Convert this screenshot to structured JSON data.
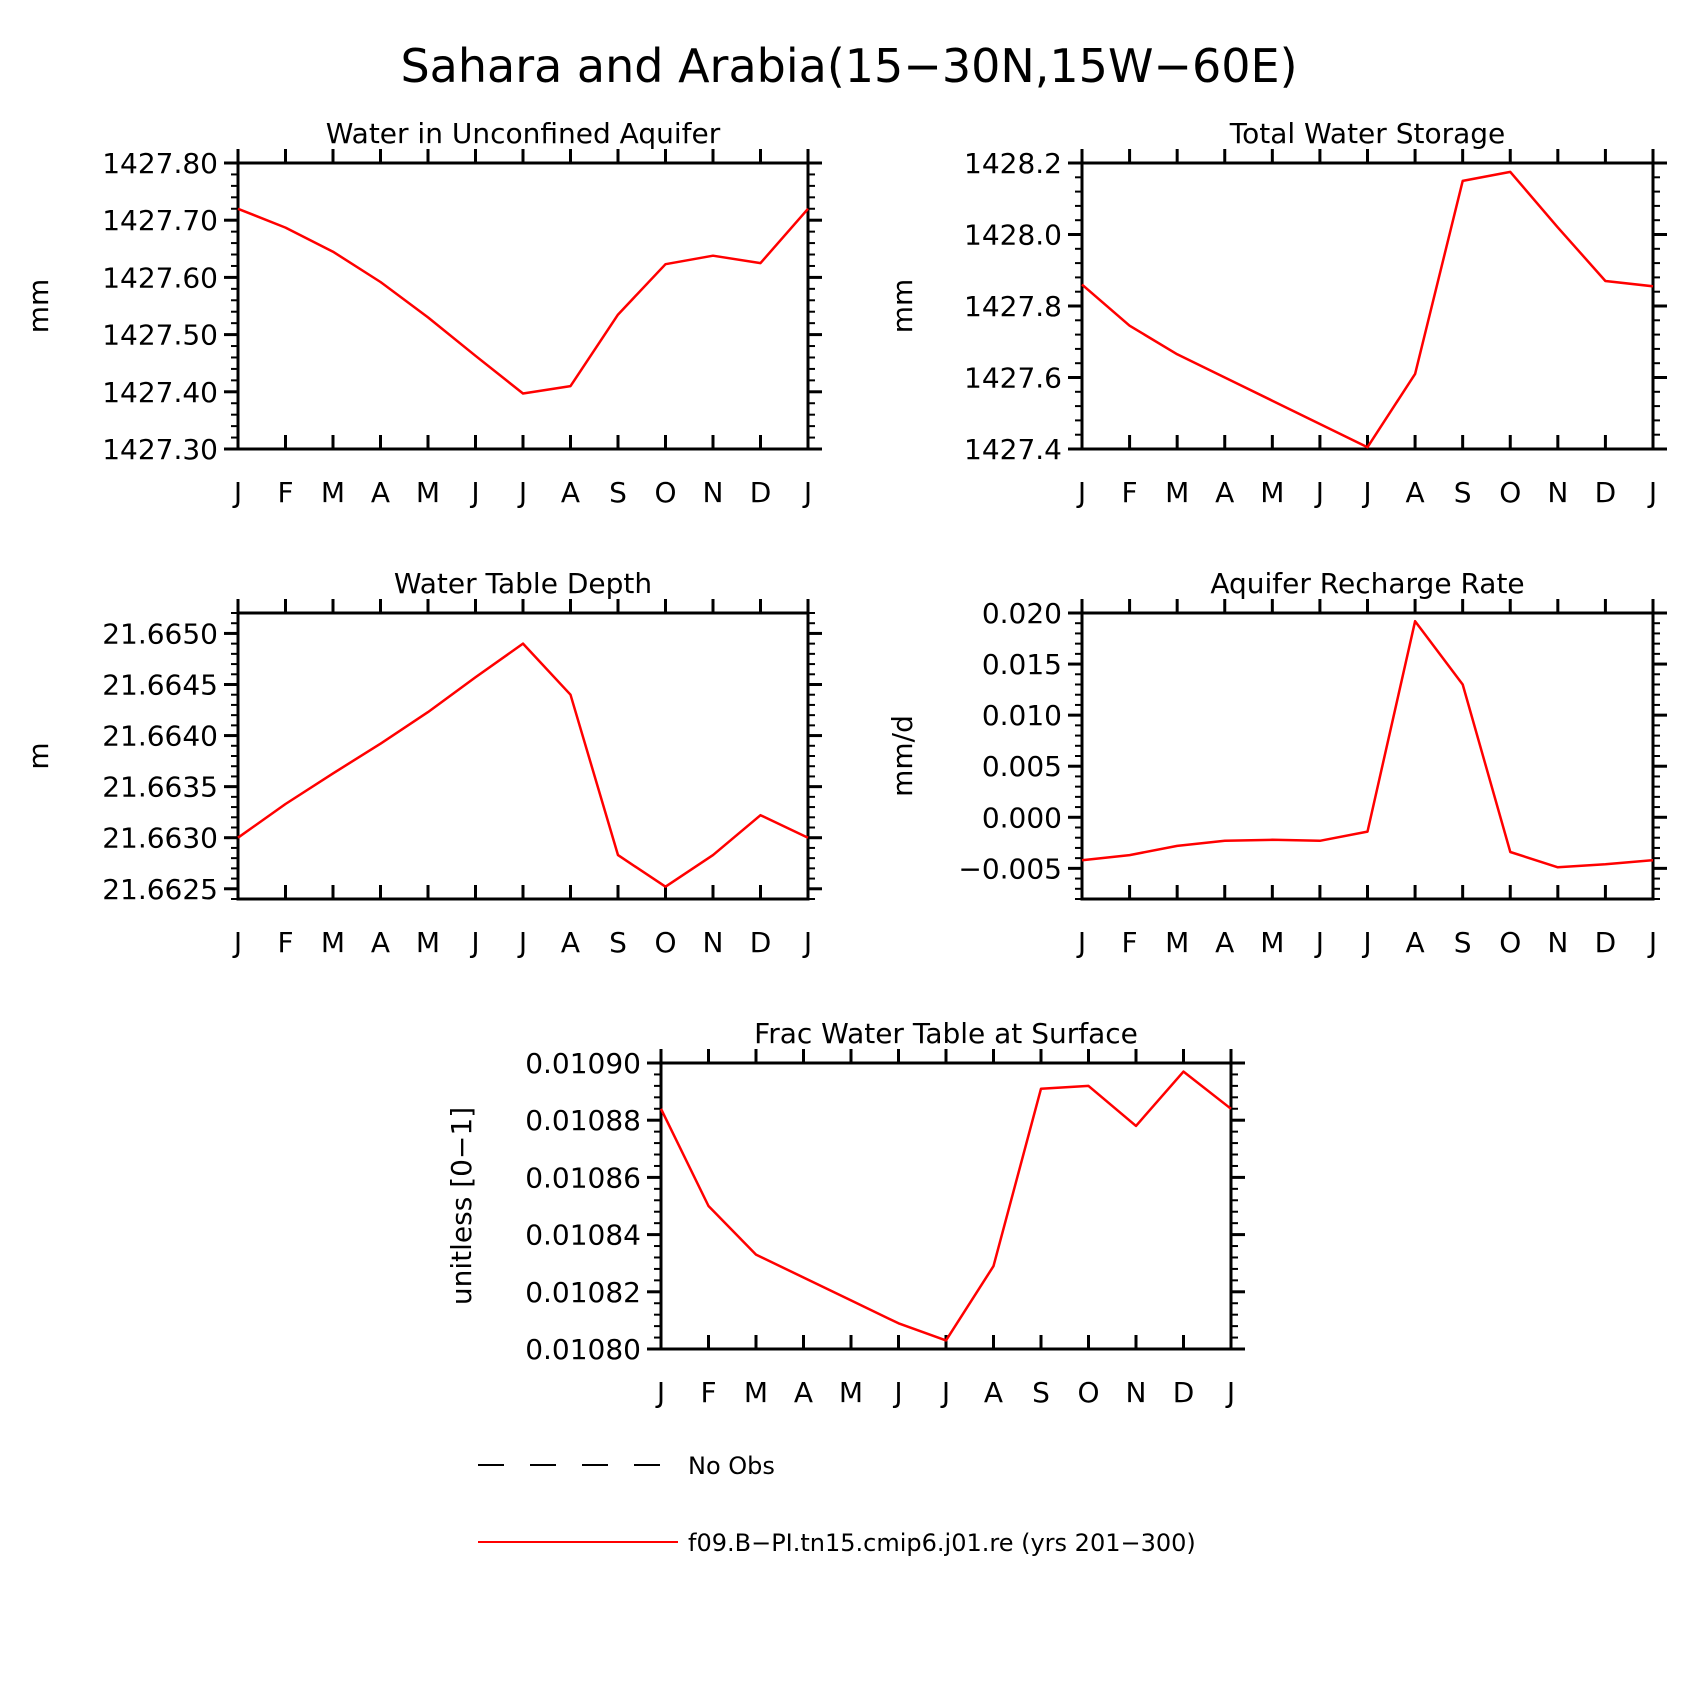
{
  "figure_title": "Sahara and Arabia(15−30N,15W−60E)",
  "colors": {
    "series": "#ff0000",
    "axis": "#000000"
  },
  "legend": {
    "entries": [
      {
        "label": "No Obs",
        "style": "dashed",
        "color": "#000000"
      },
      {
        "label": "f09.B−PI.tn15.cmip6.j01.re (yrs 201−300)",
        "style": "solid",
        "color": "#ff0000"
      }
    ]
  },
  "chart_data": [
    {
      "type": "line",
      "title": "Water in Unconfined Aquifer",
      "ylabel": "mm",
      "categories": [
        "J",
        "F",
        "M",
        "A",
        "M",
        "J",
        "J",
        "A",
        "S",
        "O",
        "N",
        "D",
        "J"
      ],
      "ylim": [
        1427.3,
        1427.8
      ],
      "yticks": [
        "1427.80",
        "1427.70",
        "1427.60",
        "1427.50",
        "1427.40",
        "1427.30"
      ],
      "yminor": 0.02,
      "series": [
        {
          "values": [
            1427.72,
            1427.687,
            1427.645,
            1427.592,
            1427.53,
            1427.463,
            1427.397,
            1427.41,
            1427.535,
            1427.623,
            1427.638,
            1427.625,
            1427.72
          ]
        }
      ]
    },
    {
      "type": "line",
      "title": "Total Water Storage",
      "ylabel": "mm",
      "categories": [
        "J",
        "F",
        "M",
        "A",
        "M",
        "J",
        "J",
        "A",
        "S",
        "O",
        "N",
        "D",
        "J"
      ],
      "ylim": [
        1427.4,
        1428.2
      ],
      "yticks": [
        "1428.2",
        "1428.0",
        "1427.8",
        "1427.6",
        "1427.4"
      ],
      "yminor": 0.04,
      "series": [
        {
          "values": [
            1427.86,
            1427.745,
            1427.665,
            1427.6,
            1427.535,
            1427.47,
            1427.405,
            1427.61,
            1428.15,
            1428.175,
            1428.02,
            1427.87,
            1427.855
          ]
        }
      ]
    },
    {
      "type": "line",
      "title": "Water Table Depth",
      "ylabel": "m",
      "categories": [
        "J",
        "F",
        "M",
        "A",
        "M",
        "J",
        "J",
        "A",
        "S",
        "O",
        "N",
        "D",
        "J"
      ],
      "ylim": [
        21.6624,
        21.6652
      ],
      "yticks": [
        "21.6650",
        "21.6645",
        "21.6640",
        "21.6635",
        "21.6630",
        "21.6625"
      ],
      "ytick_values": [
        21.665,
        21.6645,
        21.664,
        21.6635,
        21.663,
        21.6625
      ],
      "yminor": 0.0001,
      "series": [
        {
          "values": [
            21.663,
            21.66333,
            21.66363,
            21.66392,
            21.66423,
            21.66457,
            21.6649,
            21.6644,
            21.66283,
            21.66252,
            21.66283,
            21.66322,
            21.663
          ]
        }
      ]
    },
    {
      "type": "line",
      "title": "Aquifer Recharge Rate",
      "ylabel": "mm/d",
      "categories": [
        "J",
        "F",
        "M",
        "A",
        "M",
        "J",
        "J",
        "A",
        "S",
        "O",
        "N",
        "D",
        "J"
      ],
      "ylim": [
        -0.008,
        0.02
      ],
      "yticks": [
        "0.020",
        "0.015",
        "0.010",
        "0.005",
        "0.000",
        "−0.005"
      ],
      "ytick_values": [
        0.02,
        0.015,
        0.01,
        0.005,
        0.0,
        -0.005
      ],
      "yminor": 0.001,
      "series": [
        {
          "values": [
            -0.0042,
            -0.0037,
            -0.0028,
            -0.0023,
            -0.0022,
            -0.0023,
            -0.0014,
            0.0192,
            0.013,
            -0.0034,
            -0.0049,
            -0.0046,
            -0.0042
          ]
        }
      ]
    },
    {
      "type": "line",
      "title": "Frac Water Table at Surface",
      "ylabel": "unitless [0−1]",
      "categories": [
        "J",
        "F",
        "M",
        "A",
        "M",
        "J",
        "J",
        "A",
        "S",
        "O",
        "N",
        "D",
        "J"
      ],
      "ylim": [
        0.0108,
        0.0109
      ],
      "yticks": [
        "0.01090",
        "0.01088",
        "0.01086",
        "0.01084",
        "0.01082",
        "0.01080"
      ],
      "yminor": 4e-06,
      "series": [
        {
          "values": [
            0.010884,
            0.01085,
            0.010833,
            0.010825,
            0.010817,
            0.010809,
            0.010803,
            0.010829,
            0.010891,
            0.010892,
            0.010878,
            0.010897,
            0.010884
          ]
        }
      ]
    }
  ]
}
